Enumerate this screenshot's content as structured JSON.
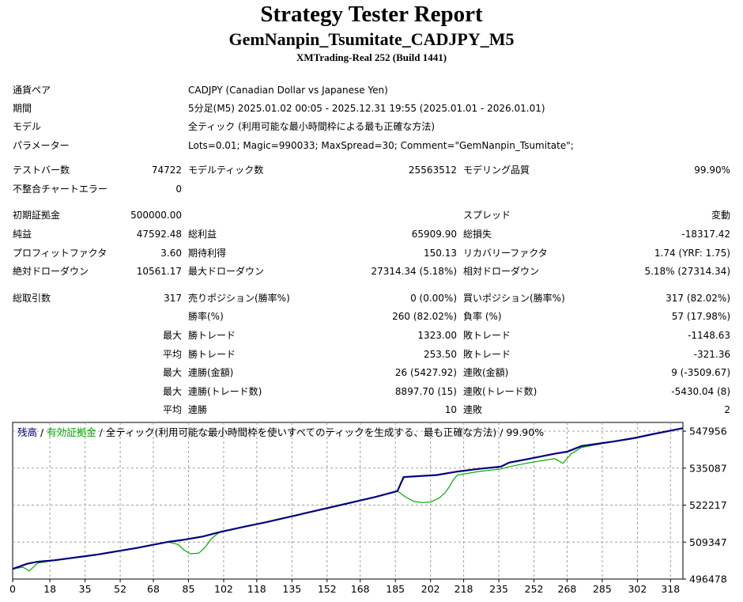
{
  "header": {
    "title": "Strategy Tester Report",
    "subtitle": "GemNanpin_Tsumitate_CADJPY_M5",
    "server": "XMTrading-Real 252 (Build 1441)"
  },
  "info": {
    "symbol_label": "通貨ペア",
    "symbol_value": "CADJPY (Canadian Dollar vs Japanese Yen)",
    "period_label": "期間",
    "period_value": "5分足(M5) 2025.01.02 00:05 - 2025.12.31 19:55 (2025.01.01 - 2026.01.01)",
    "model_label": "モデル",
    "model_value": "全ティック (利用可能な最小時間枠による最も正確な方法)",
    "params_label": "パラメーター",
    "params_value": "Lots=0.01; Magic=990033; MaxSpread=30; Comment=\"GemNanpin_Tsumitate\";"
  },
  "stats": {
    "bars_label": "テストバー数",
    "bars_value": "74722",
    "ticks_label": "モデルティック数",
    "ticks_value": "25563512",
    "quality_label": "モデリング品質",
    "quality_value": "99.90%",
    "mismatch_label": "不整合チャートエラー",
    "mismatch_value": "0",
    "deposit_label": "初期証拠金",
    "deposit_value": "500000.00",
    "spread_label": "スプレッド",
    "spread_value": "変動",
    "net_label": "純益",
    "net_value": "47592.48",
    "gross_profit_label": "総利益",
    "gross_profit_value": "65909.90",
    "gross_loss_label": "総損失",
    "gross_loss_value": "-18317.42",
    "pf_label": "プロフィットファクタ",
    "pf_value": "3.60",
    "expected_label": "期待利得",
    "expected_value": "150.13",
    "recovery_label": "リカバリーファクタ",
    "recovery_value": "1.74 (YRF: 1.75)",
    "abs_dd_label": "絶対ドローダウン",
    "abs_dd_value": "10561.17",
    "max_dd_label": "最大ドローダウン",
    "max_dd_value": "27314.34 (5.18%)",
    "rel_dd_label": "相対ドローダウン",
    "rel_dd_value": "5.18% (27314.34)",
    "trades_label": "総取引数",
    "trades_value": "317",
    "short_label": "売りポジション(勝率%)",
    "short_value": "0 (0.00%)",
    "long_label": "買いポジション(勝率%)",
    "long_value": "317 (82.02%)",
    "win_pct_label": "勝率(%)",
    "win_pct_value": "260 (82.02%)",
    "loss_pct_label": "負率 (%)",
    "loss_pct_value": "57 (17.98%)",
    "max_word": "最大",
    "avg_word": "平均",
    "largest_win_label": "勝トレード",
    "largest_win_value": "1323.00",
    "largest_loss_label": "敗トレード",
    "largest_loss_value": "-1148.63",
    "avg_win_label": "勝トレード",
    "avg_win_value": "253.50",
    "avg_loss_label": "敗トレード",
    "avg_loss_value": "-321.36",
    "max_consec_win_label": "連勝(金額)",
    "max_consec_win_value": "26 (5427.92)",
    "max_consec_loss_label": "連敗(金額)",
    "max_consec_loss_value": "9 (-3509.67)",
    "max_consec_profit_label": "連勝(トレード数)",
    "max_consec_profit_value": "8897.70 (15)",
    "max_consec_lossamt_label": "連敗(トレード数)",
    "max_consec_lossamt_value": "-5430.04 (8)",
    "avg_consec_win_label": "連勝",
    "avg_consec_win_value": "10",
    "avg_consec_loss_label": "連敗",
    "avg_consec_loss_value": "2"
  },
  "chart_data": {
    "type": "line",
    "legend": {
      "balance": "残高",
      "sep1": " / ",
      "equity": "有効証拠金",
      "sep2": " / ",
      "desc": "全ティック(利用可能な最小時間枠を使いすべてのティックを生成する、最も正確な方法) / 99.90%"
    },
    "x_ticks": [
      0,
      18,
      35,
      52,
      68,
      85,
      102,
      118,
      135,
      152,
      168,
      185,
      202,
      218,
      235,
      252,
      268,
      285,
      302,
      318
    ],
    "y_ticks": [
      "496478",
      "509347",
      "522217",
      "535087",
      "547956"
    ],
    "xlim": [
      0,
      324
    ],
    "ylim": [
      496478,
      551000
    ],
    "colors": {
      "balance": "#00007f",
      "equity": "#00aa00",
      "grid": "#a0a0a0"
    },
    "series": [
      {
        "name": "残高",
        "x": [
          0,
          7,
          12,
          20,
          40,
          60,
          75,
          83,
          92,
          100,
          112,
          122,
          133,
          145,
          160,
          175,
          186,
          189,
          205,
          215,
          225,
          236,
          240,
          250,
          262,
          268,
          275,
          290,
          300,
          310,
          324
        ],
        "y": [
          500000,
          501800,
          502500,
          503000,
          504900,
          507300,
          509400,
          510200,
          511300,
          512800,
          514700,
          516200,
          518000,
          520000,
          522500,
          525000,
          527100,
          532000,
          532700,
          533900,
          534800,
          535600,
          537000,
          538400,
          540100,
          540800,
          542800,
          544300,
          545500,
          547000,
          549000
        ]
      },
      {
        "name": "有効証拠金",
        "x": [
          0,
          5,
          8,
          10,
          12,
          20,
          40,
          60,
          75,
          80,
          83,
          86,
          90,
          93,
          96,
          100,
          112,
          122,
          133,
          145,
          160,
          175,
          186,
          190,
          194,
          198,
          202,
          206,
          209,
          211,
          213,
          215,
          225,
          236,
          240,
          250,
          262,
          266,
          270,
          275,
          290,
          300,
          310,
          324
        ],
        "y": [
          500000,
          500600,
          499300,
          500600,
          502000,
          503000,
          504900,
          507300,
          509400,
          508500,
          506500,
          505300,
          505500,
          507500,
          510500,
          512800,
          514700,
          516200,
          518000,
          520000,
          522500,
          525000,
          527100,
          525000,
          523500,
          523100,
          523300,
          524600,
          526500,
          528500,
          531000,
          532700,
          533900,
          534800,
          535600,
          537000,
          538400,
          536800,
          540100,
          542300,
          544300,
          545500,
          547000,
          549000
        ]
      }
    ]
  }
}
